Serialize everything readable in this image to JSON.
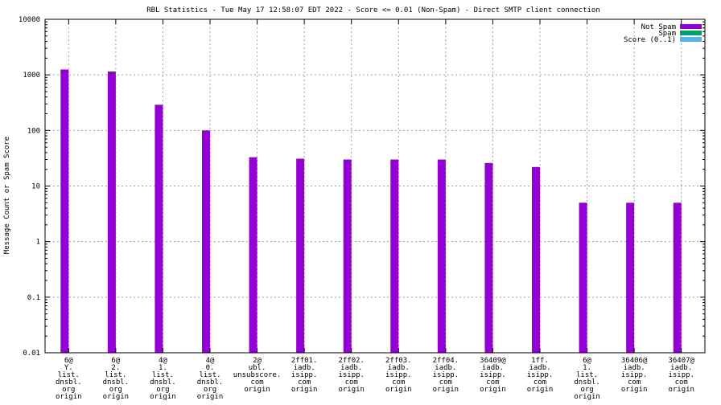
{
  "chart_data": {
    "type": "bar",
    "title": "RBL Statistics - Tue May 17 12:58:07 EDT 2022 - Score <= 0.01 (Non-Spam) - Direct SMTP client connection",
    "ylabel": "Message Count or Spam Score",
    "xlabel": "",
    "yscale": "log",
    "ylim": [
      0.01,
      10000
    ],
    "yticks": [
      {
        "value": 10000,
        "label": "10000"
      },
      {
        "value": 1000,
        "label": "1000"
      },
      {
        "value": 100,
        "label": "100"
      },
      {
        "value": 10,
        "label": "10"
      },
      {
        "value": 1,
        "label": "1"
      },
      {
        "value": 0.1,
        "label": "0.1"
      },
      {
        "value": 0.01,
        "label": "0.01"
      }
    ],
    "grid": true,
    "legend_position": "top-right",
    "categories": [
      [
        "6@",
        "Y.",
        "list.",
        "dnsbl.",
        "org",
        "origin"
      ],
      [
        "6@",
        "2.",
        "list.",
        "dnsbl.",
        "org",
        "origin"
      ],
      [
        "4@",
        "1.",
        "list.",
        "dnsbl.",
        "org",
        "origin"
      ],
      [
        "4@",
        "0.",
        "list.",
        "dnsbl.",
        "org",
        "origin"
      ],
      [
        "2@",
        "ubl.",
        "unsubscore.",
        "com",
        "origin"
      ],
      [
        "2ff01.",
        "iadb.",
        "isipp.",
        "com",
        "origin"
      ],
      [
        "2ff02.",
        "iadb.",
        "isipp.",
        "com",
        "origin"
      ],
      [
        "2ff03.",
        "iadb.",
        "isipp.",
        "com",
        "origin"
      ],
      [
        "2ff04.",
        "iadb.",
        "isipp.",
        "com",
        "origin"
      ],
      [
        "36409@",
        "iadb.",
        "isipp.",
        "com",
        "origin"
      ],
      [
        "1ff.",
        "iadb.",
        "isipp.",
        "com",
        "origin"
      ],
      [
        "6@",
        "1.",
        "list.",
        "dnsbl.",
        "org",
        "origin"
      ],
      [
        "36406@",
        "iadb.",
        "isipp.",
        "com",
        "origin"
      ],
      [
        "36407@",
        "iadb.",
        "isipp.",
        "com",
        "origin"
      ]
    ],
    "series": [
      {
        "name": "Not Spam",
        "color": "#9400d3",
        "values": [
          1250,
          1150,
          290,
          100,
          33,
          31,
          30,
          30,
          30,
          26,
          22,
          5,
          5,
          5
        ]
      },
      {
        "name": "Spam",
        "color": "#009e73",
        "values": [
          null,
          null,
          null,
          null,
          null,
          null,
          null,
          null,
          null,
          null,
          null,
          null,
          null,
          null
        ]
      },
      {
        "name": "Score (0..1)",
        "color": "#56b4e9",
        "values": [
          null,
          null,
          null,
          null,
          null,
          null,
          null,
          null,
          null,
          null,
          null,
          null,
          null,
          null
        ]
      }
    ]
  }
}
